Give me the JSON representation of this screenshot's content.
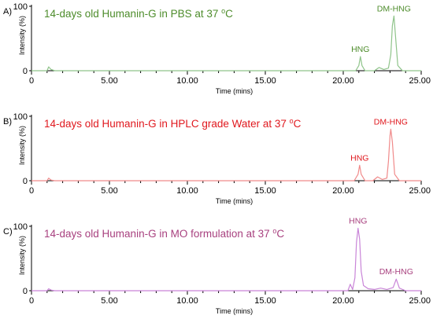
{
  "colors": {
    "axis": "#000000",
    "panel_a": "#4d8c2b",
    "panel_a_line": "#8fc48a",
    "panel_b": "#e0181e",
    "panel_b_line": "#f08a8a",
    "panel_c": "#a8417f",
    "panel_c_line": "#c985d8"
  },
  "chart_data": [
    {
      "type": "line",
      "panel_letter": "A)",
      "title_main": "14-days old Humanin-G in PBS at 37 ",
      "title_super": "o",
      "title_end": "C",
      "xlabel": "Time (mins)",
      "ylabel": "Intensity (%)",
      "xlim": [
        0,
        25
      ],
      "ylim": [
        0,
        100
      ],
      "x_ticks": [
        "0",
        "5.00",
        "10.00",
        "15.00",
        "20.00",
        "25.00"
      ],
      "y_ticks": [
        "0",
        "100"
      ],
      "peaks": [
        {
          "label": "HNG",
          "x": 21.1,
          "y": 22
        },
        {
          "label": "DM-HNG",
          "x": 23.25,
          "y": 85
        }
      ],
      "series": [
        {
          "x": [
            0,
            1.0,
            1.1,
            1.25,
            1.5,
            5,
            10,
            15,
            20,
            20.8,
            21.0,
            21.1,
            21.2,
            21.4,
            22.0,
            22.3,
            22.6,
            22.9,
            23.05,
            23.15,
            23.25,
            23.35,
            23.5,
            23.8,
            24.5,
            25
          ],
          "y": [
            0,
            0,
            6,
            2,
            0,
            0,
            0,
            0,
            0,
            0,
            8,
            22,
            8,
            0,
            0,
            5,
            2,
            4,
            25,
            70,
            85,
            55,
            8,
            0,
            0,
            0
          ]
        }
      ]
    },
    {
      "type": "line",
      "panel_letter": "B)",
      "title_main": "14-days old Humanin-G in HPLC grade Water at 37 ",
      "title_super": "o",
      "title_end": "C",
      "xlabel": "Time (mins)",
      "ylabel": "Intensity (%)",
      "xlim": [
        0,
        25
      ],
      "ylim": [
        0,
        100
      ],
      "x_ticks": [
        "0",
        "5.00",
        "10.00",
        "15.00",
        "20.00",
        "25.00"
      ],
      "y_ticks": [
        "0",
        "100"
      ],
      "peaks": [
        {
          "label": "HNG",
          "x": 21.05,
          "y": 24
        },
        {
          "label": "DM-HNG",
          "x": 23.05,
          "y": 80
        }
      ],
      "series": [
        {
          "x": [
            0,
            1.0,
            1.1,
            1.25,
            1.5,
            5,
            10,
            15,
            20,
            20.7,
            20.95,
            21.05,
            21.15,
            21.4,
            21.9,
            22.2,
            22.5,
            22.8,
            22.9,
            23.0,
            23.05,
            23.15,
            23.3,
            23.6,
            24.5,
            25
          ],
          "y": [
            0,
            0,
            4,
            1,
            0,
            0,
            0,
            0,
            0,
            0,
            10,
            24,
            10,
            0,
            0,
            6,
            2,
            4,
            30,
            70,
            80,
            60,
            10,
            0,
            0,
            0
          ]
        }
      ]
    },
    {
      "type": "line",
      "panel_letter": "C)",
      "title_main": "14-days old Humanin-G in MO formulation at 37 ",
      "title_super": "o",
      "title_end": "C",
      "xlabel": "Time (mins)",
      "ylabel": "Intensity (%)",
      "xlim": [
        0,
        25
      ],
      "ylim": [
        0,
        100
      ],
      "x_ticks": [
        "0",
        "5.00",
        "10.00",
        "15.00",
        "20.00",
        "25.00"
      ],
      "y_ticks": [
        "0",
        "100"
      ],
      "peaks": [
        {
          "label": "HNG",
          "x": 20.95,
          "y": 97
        },
        {
          "label": "DM-HNG",
          "x": 23.4,
          "y": 18
        }
      ],
      "series": [
        {
          "x": [
            0,
            1.0,
            1.1,
            1.25,
            1.5,
            5,
            10,
            15,
            19.8,
            20.3,
            20.45,
            20.6,
            20.75,
            20.85,
            20.95,
            21.05,
            21.15,
            21.3,
            21.6,
            22.0,
            22.4,
            22.8,
            23.2,
            23.4,
            23.6,
            24.0,
            25
          ],
          "y": [
            0,
            0,
            3,
            1,
            0,
            0,
            0,
            0,
            0,
            0,
            10,
            2,
            20,
            75,
            97,
            80,
            30,
            8,
            3,
            2,
            4,
            2,
            5,
            18,
            4,
            0,
            0
          ]
        }
      ]
    }
  ]
}
